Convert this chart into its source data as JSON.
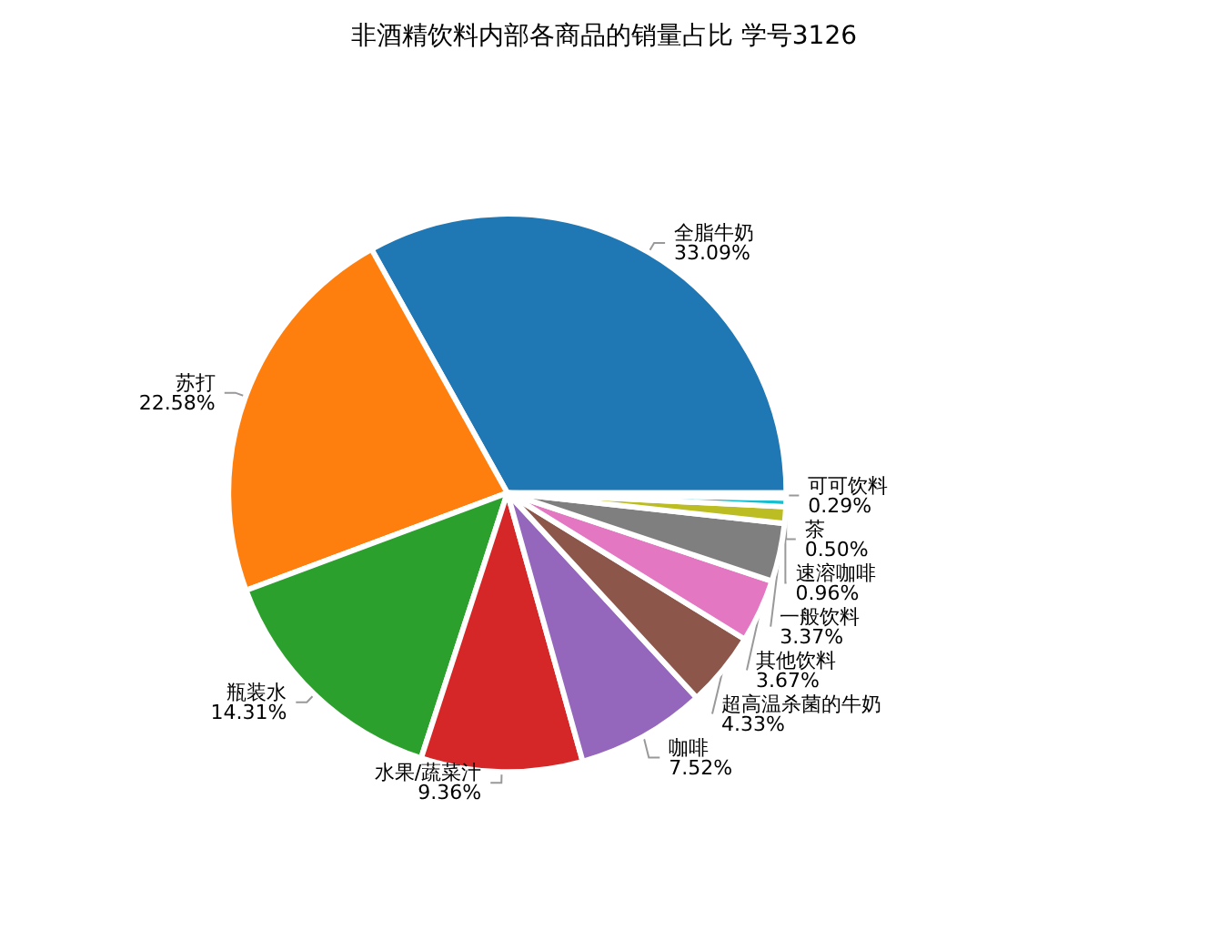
{
  "chart_data": {
    "type": "pie",
    "title": "非酒精饮料内部各商品的销量占比 学号3126",
    "categories": [
      "全脂牛奶",
      "苏打",
      "瓶装水",
      "水果/蔬菜汁",
      "咖啡",
      "超高温杀菌的牛奶",
      "其他饮料",
      "一般饮料",
      "速溶咖啡",
      "茶",
      "可可饮料"
    ],
    "values": [
      33.09,
      22.58,
      14.31,
      9.36,
      7.52,
      4.33,
      3.67,
      3.37,
      0.96,
      0.5,
      0.29
    ],
    "value_labels": [
      "33.09%",
      "22.58%",
      "14.31%",
      "9.36%",
      "7.52%",
      "4.33%",
      "3.67%",
      "3.37%",
      "0.96%",
      "0.50%",
      "0.29%"
    ],
    "colors": [
      "#1f77b4",
      "#ff7f0e",
      "#2ca02c",
      "#d62728",
      "#9467bd",
      "#8c564b",
      "#e377c2",
      "#7f7f7f",
      "#bcbd22",
      "#17becf",
      "#1f77b4"
    ],
    "legend": false
  }
}
